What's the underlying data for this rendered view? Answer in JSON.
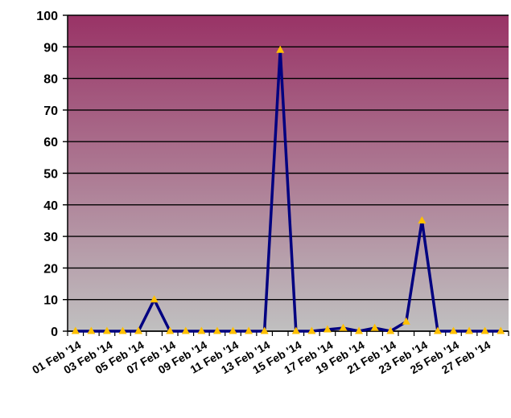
{
  "chart_data": {
    "type": "line",
    "title": "",
    "xlabel": "",
    "ylabel": "",
    "ylim": [
      0,
      100
    ],
    "y_ticks": [
      0,
      10,
      20,
      30,
      40,
      50,
      60,
      70,
      80,
      90,
      100
    ],
    "grid": "horizontal",
    "legend": "none",
    "x": [
      "01 Feb '14",
      "02 Feb '14",
      "03 Feb '14",
      "04 Feb '14",
      "05 Feb '14",
      "06 Feb '14",
      "07 Feb '14",
      "08 Feb '14",
      "09 Feb '14",
      "10 Feb '14",
      "11 Feb '14",
      "12 Feb '14",
      "13 Feb '14",
      "14 Feb '14",
      "15 Feb '14",
      "16 Feb '14",
      "17 Feb '14",
      "18 Feb '14",
      "19 Feb '14",
      "20 Feb '14",
      "21 Feb '14",
      "22 Feb '14",
      "23 Feb '14",
      "24 Feb '14",
      "25 Feb '14",
      "26 Feb '14",
      "27 Feb '14",
      "28 Feb '14"
    ],
    "x_tick_labels": [
      "01 Feb '14",
      "03 Feb '14",
      "05 Feb '14",
      "07 Feb '14",
      "09 Feb '14",
      "11 Feb '14",
      "13 Feb '14",
      "15 Feb '14",
      "17 Feb '14",
      "19 Feb '14",
      "21 Feb '14",
      "23 Feb '14",
      "25 Feb '14",
      "27 Feb '14"
    ],
    "series": [
      {
        "values": [
          0,
          0,
          0,
          0,
          0,
          10,
          0,
          0,
          0,
          0,
          0,
          0,
          0,
          89,
          0,
          0,
          0.5,
          1,
          0,
          1,
          0,
          3,
          35,
          0,
          0,
          0,
          0,
          0
        ]
      }
    ],
    "colors": {
      "line": "#000080",
      "marker": "#FFC000",
      "background_top": "#993366",
      "background_bottom": "#C0C0C0",
      "grid": "#000000"
    }
  }
}
